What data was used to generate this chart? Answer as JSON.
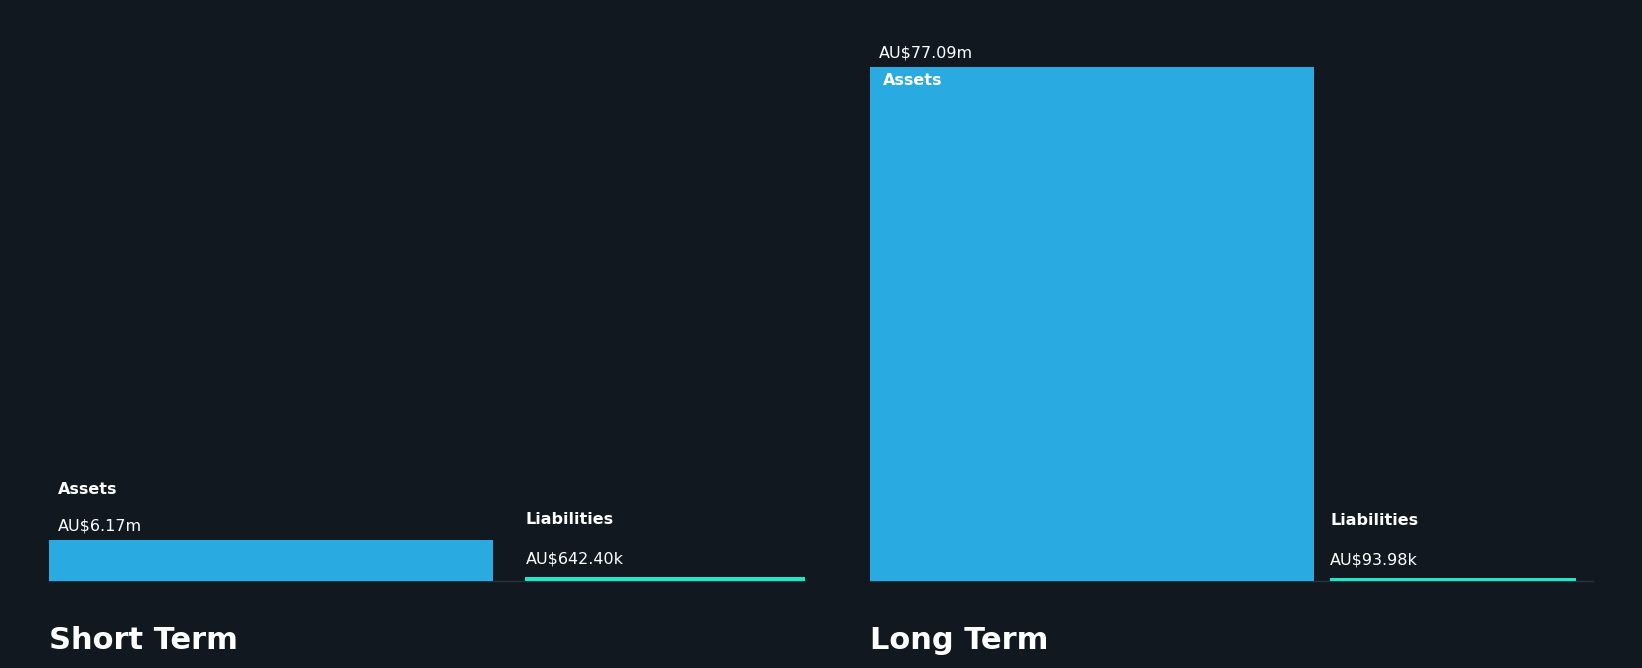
{
  "background_color": "#111820",
  "bar_color_assets": "#29abe2",
  "bar_color_liabilities": "#1de8c8",
  "short_term": {
    "assets_value": 6.17,
    "assets_label": "AU$6.17m",
    "liabilities_value": 0.6424,
    "liabilities_label": "AU$642.40k",
    "title": "Short Term",
    "assets_text": "Assets",
    "liabilities_text": "Liabilities"
  },
  "long_term": {
    "assets_value": 77.09,
    "assets_label": "AU$77.09m",
    "liabilities_value": 0.09398,
    "liabilities_label": "AU$93.98k",
    "title": "Long Term",
    "assets_text": "Assets",
    "liabilities_text": "Liabilities"
  },
  "text_color": "#ffffff",
  "title_fontsize": 22,
  "bar_label_fontsize": 11.5,
  "assets_label_fontsize": 11.5
}
